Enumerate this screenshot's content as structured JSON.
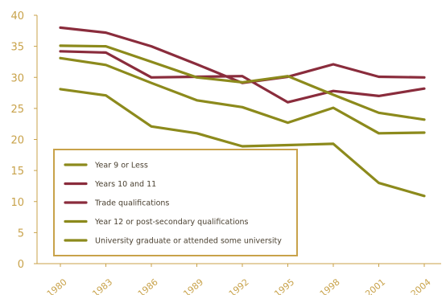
{
  "chart_data": {
    "type": "line",
    "title": "",
    "xlabel": "",
    "ylabel": "",
    "x": [
      1980,
      1983,
      1986,
      1989,
      1992,
      1995,
      1998,
      2001,
      2004
    ],
    "x_ticks": [
      "1980",
      "1983",
      "1986",
      "1989",
      "1992",
      "1995",
      "1998",
      "2001",
      "2004"
    ],
    "ylim": [
      0,
      40
    ],
    "y_ticks": [
      0,
      5,
      10,
      15,
      20,
      25,
      30,
      35,
      40
    ],
    "grid": false,
    "legend_position": "center-left",
    "series": [
      {
        "name": "Year 9 or Less",
        "color": "#8c8a1c",
        "values": [
          28.1,
          27.1,
          22.1,
          21.0,
          18.9,
          19.1,
          19.3,
          13.0,
          10.9
        ]
      },
      {
        "name": "Years 10 and 11",
        "color": "#8a2c3c",
        "values": [
          38.0,
          37.2,
          35.0,
          32.1,
          29.1,
          30.1,
          32.1,
          30.1,
          30.0
        ]
      },
      {
        "name": "Trade qualifications",
        "color": "#8a2c3c",
        "values": [
          34.2,
          34.0,
          30.0,
          30.1,
          30.2,
          26.0,
          27.8,
          27.0,
          28.2
        ]
      },
      {
        "name": "Year 12 or post-secondary qualifications",
        "color": "#8c8a1c",
        "values": [
          35.1,
          35.0,
          32.5,
          30.0,
          29.2,
          30.2,
          27.2,
          24.3,
          23.2
        ]
      },
      {
        "name": "University graduate or attended some university",
        "color": "#8c8a1c",
        "values": [
          33.1,
          32.0,
          29.1,
          26.3,
          25.2,
          22.7,
          25.1,
          21.0,
          21.1
        ]
      }
    ]
  }
}
